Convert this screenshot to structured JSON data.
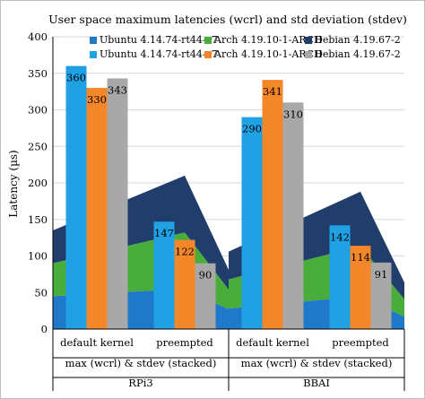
{
  "colors": {
    "ubuntu": "#1f78c8",
    "arch": "#49ad3c",
    "debian": "#213d6b",
    "ubuntu_bar": "#1fa1e3",
    "arch_bar": "#f5872b",
    "debian_bar": "#a8a8a8",
    "axis": "#000000",
    "grid": "#d9d9d9"
  },
  "chart_data": {
    "type": "bar",
    "title": "User space maximum latencies (wcrl) and std deviation (stdev)",
    "ylabel": "Latency (µs)",
    "ylim": [
      0,
      400
    ],
    "yticks": [
      0,
      50,
      100,
      150,
      200,
      250,
      300,
      350,
      400
    ],
    "grid": true,
    "legend_position": "top-right",
    "legend": [
      {
        "label": "Ubuntu 4.14.74-rt44-v7",
        "color_key": "ubuntu"
      },
      {
        "label": "Arch 4.19.10-1-ARCH",
        "color_key": "arch"
      },
      {
        "label": "Debian 4.19.67-2",
        "color_key": "debian"
      },
      {
        "label": "Ubuntu 4.14.74-rt44-v7",
        "color_key": "ubuntu_bar"
      },
      {
        "label": "Arch 4.19.10-1-ARCH",
        "color_key": "arch_bar"
      },
      {
        "label": "Debian 4.19.67-2",
        "color_key": "debian_bar"
      }
    ],
    "category_labels": [
      "default kernel",
      "preempted",
      "default kernel",
      "preempted"
    ],
    "sublabel": "max (wcrl) & stdev (stacked)",
    "groups": [
      "RPi3",
      "BBAI"
    ],
    "bar_series": [
      {
        "name": "Ubuntu 4.14.74-rt44-v7",
        "color_key": "ubuntu_bar",
        "values": [
          360,
          147,
          290,
          142
        ]
      },
      {
        "name": "Arch 4.19.10-1-ARCH",
        "color_key": "arch_bar",
        "values": [
          330,
          122,
          341,
          114
        ]
      },
      {
        "name": "Debian 4.19.67-2",
        "color_key": "debian_bar",
        "values": [
          343,
          90,
          310,
          91
        ]
      }
    ],
    "area_series": [
      {
        "name": "Ubuntu 4.14.74-rt44-v7",
        "color_key": "ubuntu",
        "values": [
          45,
          55,
          28,
          45
        ]
      },
      {
        "name": "Arch 4.19.10-1-ARCH",
        "color_key": "arch",
        "values": [
          45,
          77,
          40,
          68
        ]
      },
      {
        "name": "Debian 4.19.67-2",
        "color_key": "debian",
        "values": [
          45,
          78,
          38,
          75
        ]
      }
    ]
  }
}
